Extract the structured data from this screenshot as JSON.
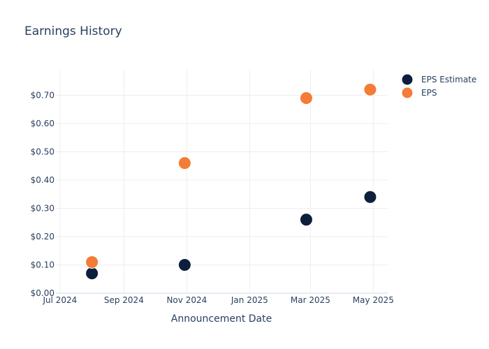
{
  "chart_data": {
    "type": "scatter",
    "title": "Earnings History",
    "xlabel": "Announcement Date",
    "ylabel": "",
    "x_ticks": [
      "Jul 2024",
      "Sep 2024",
      "Nov 2024",
      "Jan 2025",
      "Mar 2025",
      "May 2025"
    ],
    "x_tick_dates": [
      "2024-07-01",
      "2024-09-01",
      "2024-11-01",
      "2025-01-01",
      "2025-03-01",
      "2025-05-01"
    ],
    "y_ticks": [
      "$0.00",
      "$0.10",
      "$0.20",
      "$0.30",
      "$0.40",
      "$0.50",
      "$0.60",
      "$0.70"
    ],
    "ylim": [
      0,
      0.79
    ],
    "xlim": [
      "2024-06-27",
      "2025-05-15"
    ],
    "grid": true,
    "legend_position": "top-right",
    "series": [
      {
        "name": "EPS Estimate",
        "color": "#0d1f3c",
        "points": [
          {
            "x": "2024-08-01",
            "y": 0.07
          },
          {
            "x": "2024-10-30",
            "y": 0.1
          },
          {
            "x": "2025-02-25",
            "y": 0.26
          },
          {
            "x": "2025-04-28",
            "y": 0.34
          }
        ]
      },
      {
        "name": "EPS",
        "color": "#f47c36",
        "points": [
          {
            "x": "2024-08-01",
            "y": 0.11
          },
          {
            "x": "2024-10-30",
            "y": 0.46
          },
          {
            "x": "2025-02-25",
            "y": 0.69
          },
          {
            "x": "2025-04-28",
            "y": 0.72
          }
        ]
      }
    ]
  }
}
